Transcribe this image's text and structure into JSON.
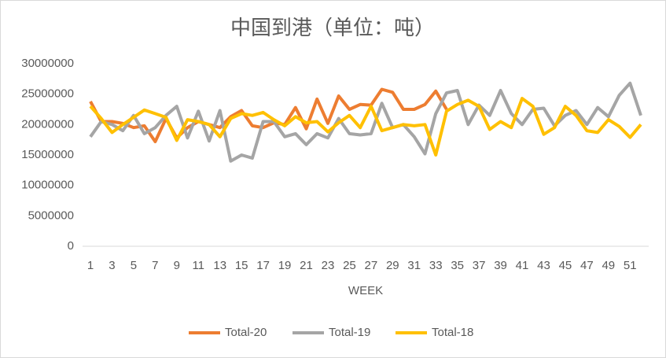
{
  "chart_data": {
    "type": "line",
    "title": "中国到港（单位：吨）",
    "xlabel": "WEEK",
    "categories": [
      1,
      null,
      3,
      null,
      5,
      null,
      7,
      null,
      9,
      null,
      11,
      null,
      13,
      null,
      15,
      null,
      17,
      null,
      19,
      null,
      21,
      null,
      23,
      null,
      25,
      null,
      27,
      null,
      29,
      null,
      31,
      null,
      33,
      null,
      35,
      null,
      37,
      null,
      39,
      null,
      41,
      null,
      43,
      null,
      45,
      null,
      47,
      null,
      49,
      null,
      51,
      null
    ],
    "ylim": [
      0,
      30000000
    ],
    "yticks": [
      0,
      5000000,
      10000000,
      15000000,
      20000000,
      25000000,
      30000000
    ],
    "grid": false,
    "legend": "bottom",
    "series": [
      {
        "name": "Total-20",
        "color": "#ed7d31",
        "values": [
          23800000,
          20500000,
          20500000,
          20200000,
          19500000,
          19800000,
          17200000,
          21000000,
          17800000,
          19500000,
          20500000,
          20000000,
          19500000,
          21300000,
          22300000,
          19800000,
          19500000,
          20300000,
          20000000,
          22800000,
          19300000,
          24200000,
          20200000,
          24700000,
          22500000,
          23300000,
          23200000,
          25800000,
          25300000,
          22500000,
          22500000,
          23300000,
          25500000,
          22500000,
          null,
          null,
          null,
          null,
          null,
          null,
          null,
          null,
          null,
          null,
          null,
          null,
          null,
          null,
          null,
          null,
          null,
          null
        ]
      },
      {
        "name": "Total-19",
        "color": "#a5a5a5",
        "values": [
          18000000,
          20500000,
          20000000,
          19000000,
          21500000,
          18500000,
          19500000,
          21500000,
          23000000,
          17800000,
          22200000,
          17300000,
          22300000,
          14000000,
          15000000,
          14500000,
          20500000,
          20500000,
          18000000,
          18500000,
          16700000,
          18500000,
          17800000,
          21000000,
          18500000,
          18300000,
          18500000,
          23500000,
          19500000,
          20000000,
          18000000,
          15200000,
          21800000,
          25200000,
          25600000,
          20000000,
          23200000,
          21500000,
          25600000,
          21800000,
          20000000,
          22500000,
          22700000,
          19800000,
          21500000,
          22300000,
          20000000,
          22800000,
          21300000,
          24800000,
          26800000,
          21500000
        ]
      },
      {
        "name": "Total-18",
        "color": "#ffc000",
        "values": [
          23000000,
          21000000,
          18700000,
          20000000,
          21200000,
          22400000,
          21800000,
          21200000,
          17400000,
          20800000,
          20500000,
          20000000,
          18000000,
          21000000,
          21800000,
          21500000,
          22000000,
          20800000,
          19800000,
          21300000,
          20300000,
          20500000,
          18800000,
          20300000,
          21500000,
          19500000,
          23000000,
          19000000,
          19500000,
          20000000,
          19800000,
          20000000,
          15000000,
          22200000,
          23300000,
          24000000,
          23000000,
          19200000,
          20500000,
          19500000,
          24300000,
          23000000,
          18400000,
          19500000,
          23000000,
          21500000,
          19000000,
          18700000,
          20800000,
          19700000,
          17900000,
          20000000
        ]
      }
    ]
  }
}
